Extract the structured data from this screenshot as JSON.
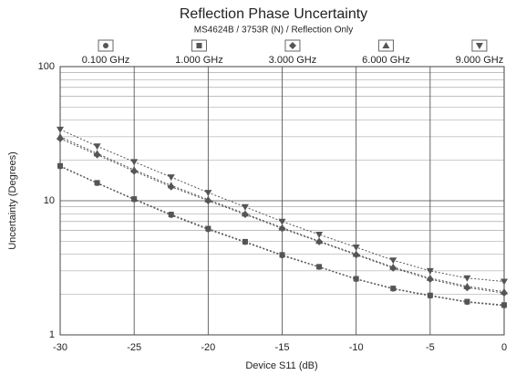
{
  "chart_data": {
    "type": "line",
    "title": "Reflection Phase Uncertainty",
    "subtitle": "MS4624B / 3753R (N) / Reflection Only",
    "x_label": "Device S11 (dB)",
    "y_label": "Uncertainty (Degrees)",
    "x": [
      -30,
      -27.5,
      -25,
      -22.5,
      -20,
      -17.5,
      -15,
      -12.5,
      -10,
      -7.5,
      -5,
      -2.5,
      0
    ],
    "series": [
      {
        "name": "0.100 GHz",
        "color": "#555555",
        "marker": "circle",
        "values": [
          18,
          13.5,
          10.2,
          7.8,
          6.1,
          4.9,
          3.9,
          3.2,
          2.6,
          2.2,
          1.95,
          1.75,
          1.65
        ]
      },
      {
        "name": "1.000 GHz",
        "color": "#555555",
        "marker": "square",
        "values": [
          18.2,
          13.6,
          10.3,
          7.9,
          6.2,
          4.95,
          3.95,
          3.22,
          2.62,
          2.22,
          1.97,
          1.77,
          1.67
        ]
      },
      {
        "name": "3.000 GHz",
        "color": "#555555",
        "marker": "diamond",
        "values": [
          29,
          22,
          16.6,
          12.7,
          10,
          7.9,
          6.2,
          4.95,
          3.95,
          3.15,
          2.6,
          2.25,
          2.05
        ]
      },
      {
        "name": "6.000 GHz",
        "color": "#555555",
        "marker": "triangle-up",
        "values": [
          30,
          22.5,
          17,
          13,
          10.2,
          8,
          6.3,
          5,
          4,
          3.2,
          2.65,
          2.3,
          2.1
        ]
      },
      {
        "name": "9.000 GHz",
        "color": "#555555",
        "marker": "triangle-down",
        "values": [
          34,
          25.5,
          19.5,
          15,
          11.5,
          9,
          7,
          5.6,
          4.5,
          3.6,
          3,
          2.65,
          2.5
        ]
      }
    ],
    "xlim": [
      -30,
      0
    ],
    "xticks": [
      -30,
      -25,
      -20,
      -15,
      -10,
      -5,
      0
    ],
    "ylim": [
      1,
      100
    ],
    "yticks": [
      1,
      10,
      100
    ],
    "log_y": true,
    "grid": true,
    "legend": "top"
  }
}
